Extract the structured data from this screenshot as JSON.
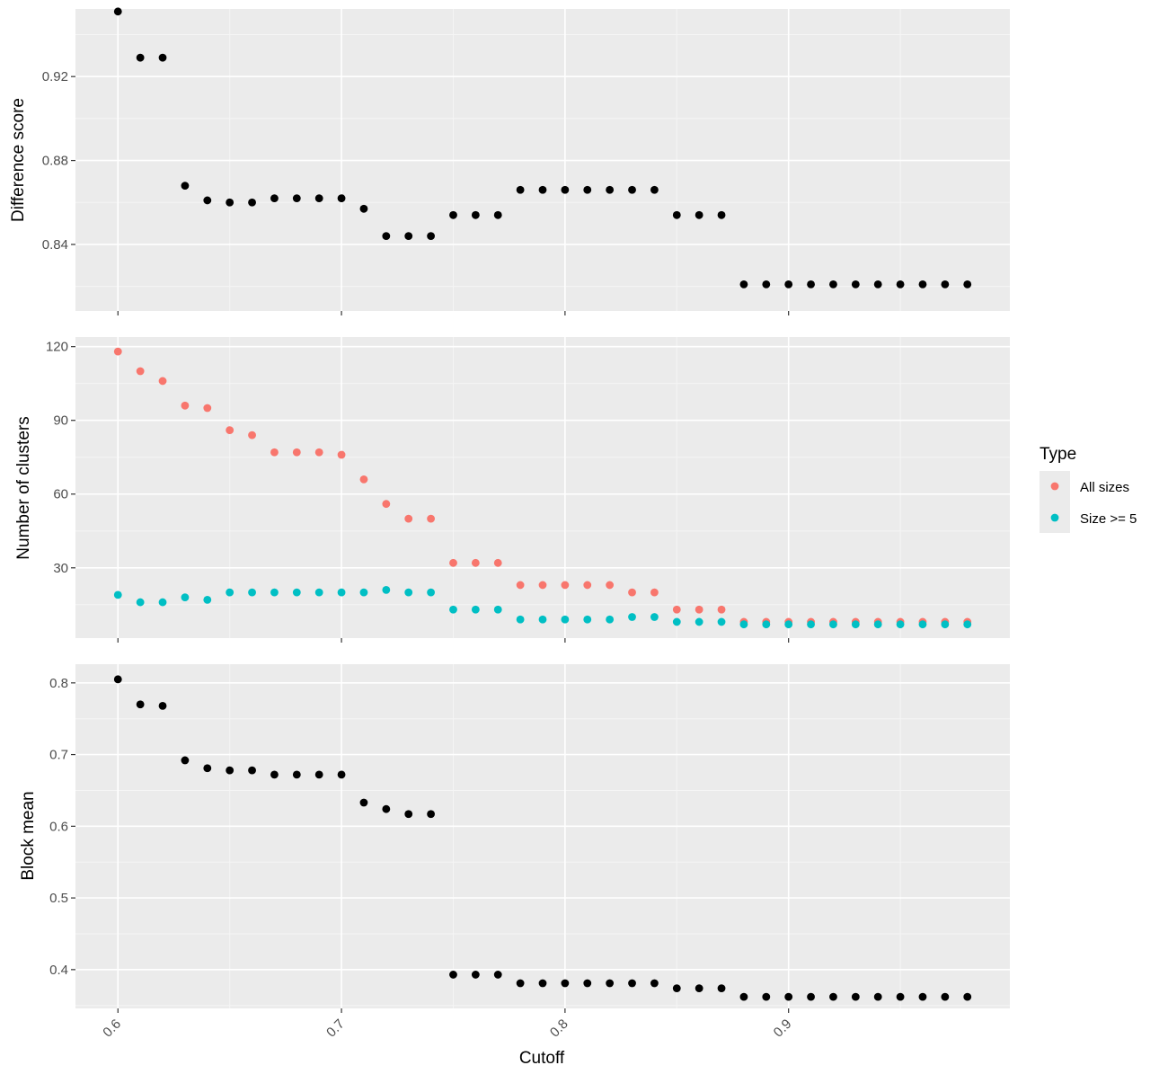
{
  "chart_data": [
    {
      "type": "scatter",
      "ylabel": "Difference score",
      "xlim": [
        0.581,
        0.999
      ],
      "ylim": [
        0.8083,
        0.9522
      ],
      "yticks": [
        0.84,
        0.88,
        0.92
      ],
      "yticklabels": [
        "0.84",
        "0.88",
        "0.92"
      ],
      "grid": true,
      "series": [
        {
          "color": "#000000",
          "x": [
            0.6,
            0.61,
            0.62,
            0.63,
            0.64,
            0.65,
            0.66,
            0.67,
            0.68,
            0.69,
            0.7,
            0.71,
            0.72,
            0.73,
            0.74,
            0.75,
            0.76,
            0.77,
            0.78,
            0.79,
            0.8,
            0.81,
            0.82,
            0.83,
            0.84,
            0.85,
            0.86,
            0.87,
            0.88,
            0.89,
            0.9,
            0.91,
            0.92,
            0.93,
            0.94,
            0.95,
            0.96,
            0.97,
            0.98
          ],
          "y": [
            0.951,
            0.929,
            0.929,
            0.868,
            0.861,
            0.86,
            0.86,
            0.862,
            0.862,
            0.862,
            0.862,
            0.857,
            0.844,
            0.844,
            0.844,
            0.854,
            0.854,
            0.854,
            0.866,
            0.866,
            0.866,
            0.866,
            0.866,
            0.866,
            0.866,
            0.854,
            0.854,
            0.854,
            0.821,
            0.821,
            0.821,
            0.821,
            0.821,
            0.821,
            0.821,
            0.821,
            0.821,
            0.821,
            0.821
          ]
        }
      ]
    },
    {
      "type": "scatter",
      "ylabel": "Number of clusters",
      "xlim": [
        0.581,
        0.999
      ],
      "ylim": [
        1.4,
        123.9
      ],
      "yticks": [
        30,
        60,
        90,
        120
      ],
      "yticklabels": [
        "30",
        "60",
        "90",
        "120"
      ],
      "grid": true,
      "legend": {
        "title": "Type",
        "position": "right",
        "entries": [
          {
            "label": "All sizes",
            "color": "#F8766D"
          },
          {
            "label": "Size >= 5",
            "color": "#00BFC4"
          }
        ]
      },
      "series": [
        {
          "name": "All sizes",
          "color": "#F8766D",
          "x": [
            0.6,
            0.61,
            0.62,
            0.63,
            0.64,
            0.65,
            0.66,
            0.67,
            0.68,
            0.69,
            0.7,
            0.71,
            0.72,
            0.73,
            0.74,
            0.75,
            0.76,
            0.77,
            0.78,
            0.79,
            0.8,
            0.81,
            0.82,
            0.83,
            0.84,
            0.85,
            0.86,
            0.87,
            0.88,
            0.89,
            0.9,
            0.91,
            0.92,
            0.93,
            0.94,
            0.95,
            0.96,
            0.97,
            0.98
          ],
          "y": [
            118,
            110,
            106,
            96,
            95,
            86,
            84,
            77,
            77,
            77,
            76,
            66,
            56,
            50,
            50,
            32,
            32,
            32,
            23,
            23,
            23,
            23,
            23,
            20,
            20,
            13,
            13,
            13,
            8,
            8,
            8,
            8,
            8,
            8,
            8,
            8,
            8,
            8,
            8
          ]
        },
        {
          "name": "Size >= 5",
          "color": "#00BFC4",
          "x": [
            0.6,
            0.61,
            0.62,
            0.63,
            0.64,
            0.65,
            0.66,
            0.67,
            0.68,
            0.69,
            0.7,
            0.71,
            0.72,
            0.73,
            0.74,
            0.75,
            0.76,
            0.77,
            0.78,
            0.79,
            0.8,
            0.81,
            0.82,
            0.83,
            0.84,
            0.85,
            0.86,
            0.87,
            0.88,
            0.89,
            0.9,
            0.91,
            0.92,
            0.93,
            0.94,
            0.95,
            0.96,
            0.97,
            0.98
          ],
          "y": [
            19,
            16,
            16,
            18,
            17,
            20,
            20,
            20,
            20,
            20,
            20,
            20,
            21,
            20,
            20,
            13,
            13,
            13,
            9,
            9,
            9,
            9,
            9,
            10,
            10,
            8,
            8,
            8,
            7,
            7,
            7,
            7,
            7,
            7,
            7,
            7,
            7,
            7,
            7
          ]
        }
      ]
    },
    {
      "type": "scatter",
      "ylabel": "Block mean",
      "xlabel": "Cutoff",
      "xlim": [
        0.581,
        0.999
      ],
      "ylim": [
        0.3459,
        0.8261
      ],
      "xticks": [
        0.6,
        0.7,
        0.8,
        0.9
      ],
      "xticklabels": [
        "0.6",
        "0.7",
        "0.8",
        "0.9"
      ],
      "yticks": [
        0.4,
        0.5,
        0.6,
        0.7,
        0.8
      ],
      "yticklabels": [
        "0.4",
        "0.5",
        "0.6",
        "0.7",
        "0.8"
      ],
      "grid": true,
      "series": [
        {
          "color": "#000000",
          "x": [
            0.6,
            0.61,
            0.62,
            0.63,
            0.64,
            0.65,
            0.66,
            0.67,
            0.68,
            0.69,
            0.7,
            0.71,
            0.72,
            0.73,
            0.74,
            0.75,
            0.76,
            0.77,
            0.78,
            0.79,
            0.8,
            0.81,
            0.82,
            0.83,
            0.84,
            0.85,
            0.86,
            0.87,
            0.88,
            0.89,
            0.9,
            0.91,
            0.92,
            0.93,
            0.94,
            0.95,
            0.96,
            0.97,
            0.98
          ],
          "y": [
            0.805,
            0.77,
            0.768,
            0.692,
            0.681,
            0.678,
            0.678,
            0.672,
            0.672,
            0.672,
            0.672,
            0.633,
            0.624,
            0.617,
            0.617,
            0.393,
            0.393,
            0.393,
            0.381,
            0.381,
            0.381,
            0.381,
            0.381,
            0.381,
            0.381,
            0.374,
            0.374,
            0.374,
            0.362,
            0.362,
            0.362,
            0.362,
            0.362,
            0.362,
            0.362,
            0.362,
            0.362,
            0.362,
            0.362
          ]
        }
      ]
    }
  ]
}
